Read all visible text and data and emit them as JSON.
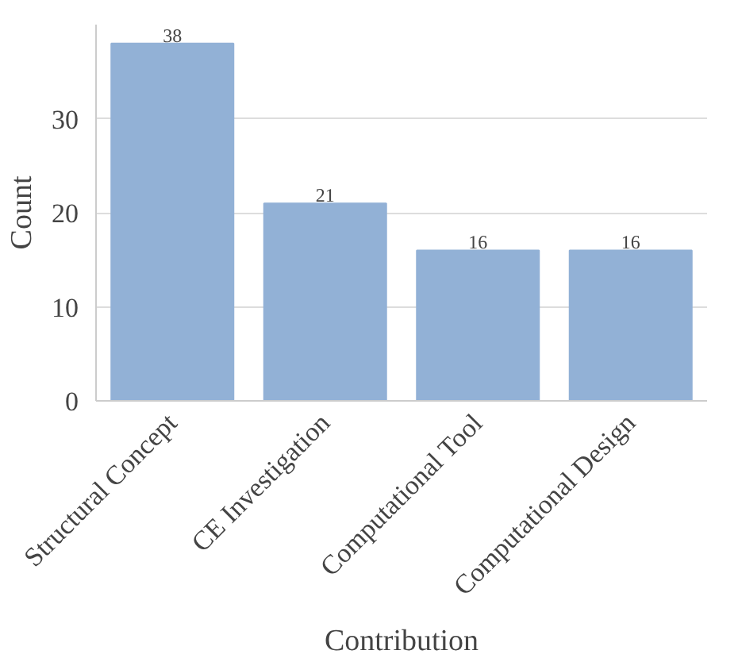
{
  "chart_data": {
    "type": "bar",
    "xlabel": "Contribution",
    "ylabel": "Count",
    "categories": [
      "Structural Concept",
      "CE Investigation",
      "Computational Tool",
      "Computational Design"
    ],
    "values": [
      38,
      21,
      16,
      16
    ],
    "color": "#92b1d6",
    "ylim": [
      0,
      40
    ],
    "yticks": [
      0,
      10,
      20,
      30
    ],
    "grid": "y",
    "data_labels": true
  }
}
